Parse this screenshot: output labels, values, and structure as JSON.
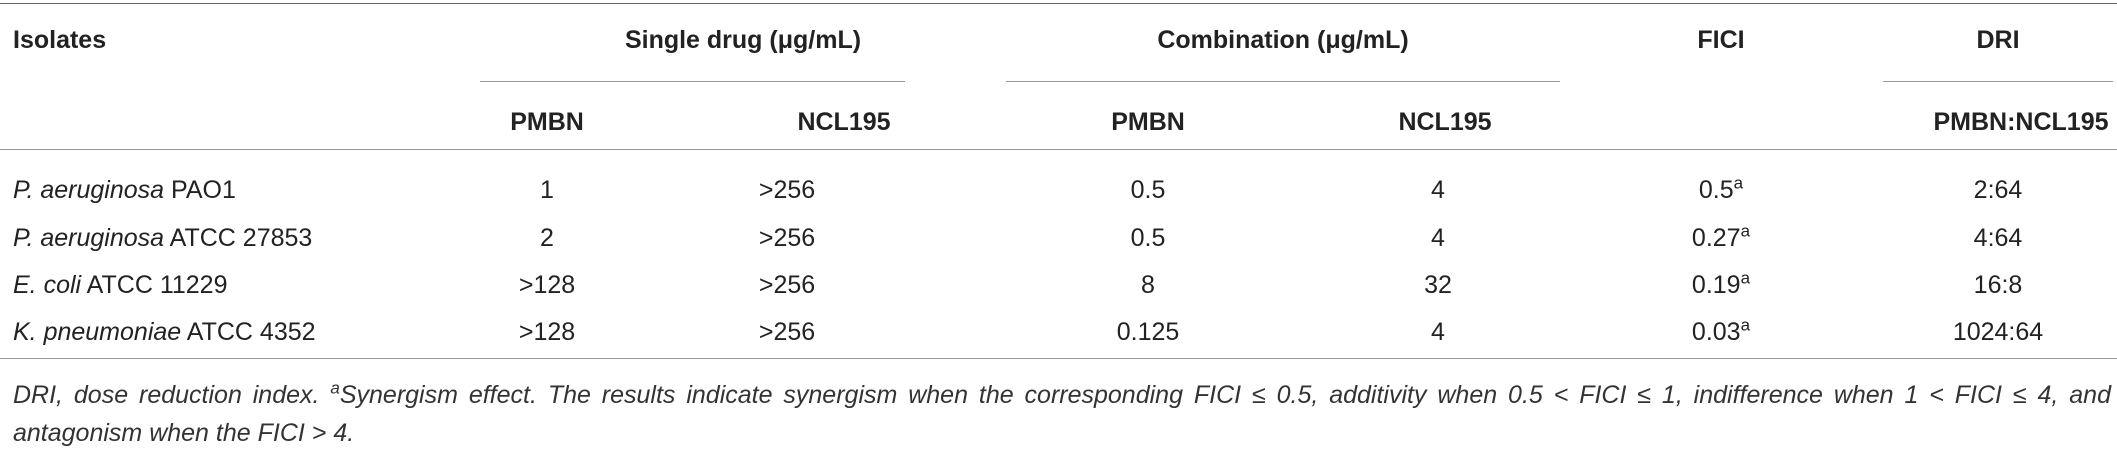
{
  "table": {
    "headers": {
      "isolates": "Isolates",
      "single_drug": "Single drug (μg/mL)",
      "combination": "Combination (μg/mL)",
      "fici": "FICI",
      "dri": "DRI",
      "sub": [
        "PMBN",
        "NCL195",
        "PMBN",
        "NCL195",
        "PMBN:NCL195"
      ]
    },
    "rows": [
      {
        "species": "P. aeruginosa",
        "strain": "PAO1",
        "cells": [
          "1",
          ">256",
          "0.5",
          "4",
          "0.5",
          "2:64"
        ],
        "fici_note": "a"
      },
      {
        "species": "P. aeruginosa",
        "strain": "ATCC 27853",
        "cells": [
          "2",
          ">256",
          "0.5",
          "4",
          "0.27",
          "4:64"
        ],
        "fici_note": "a"
      },
      {
        "species": "E. coli",
        "strain": "ATCC 11229",
        "cells": [
          ">128",
          ">256",
          "8",
          "32",
          "0.19",
          "16:8"
        ],
        "fici_note": "a"
      },
      {
        "species": "K. pneumoniae",
        "strain": "ATCC 4352",
        "cells": [
          ">128",
          ">256",
          "0.125",
          "4",
          "0.03",
          "1024:64"
        ],
        "fici_note": "a"
      }
    ],
    "footnote": [
      "DRI, dose reduction index. ",
      "a",
      "Synergism effect. The results indicate synergism when the corresponding FICI ≤ 0.5, additivity when 0.5 < FICI ≤ 1, indifference when 1 < FICI ≤ 4, and antagonism when the FICI > 4."
    ]
  }
}
